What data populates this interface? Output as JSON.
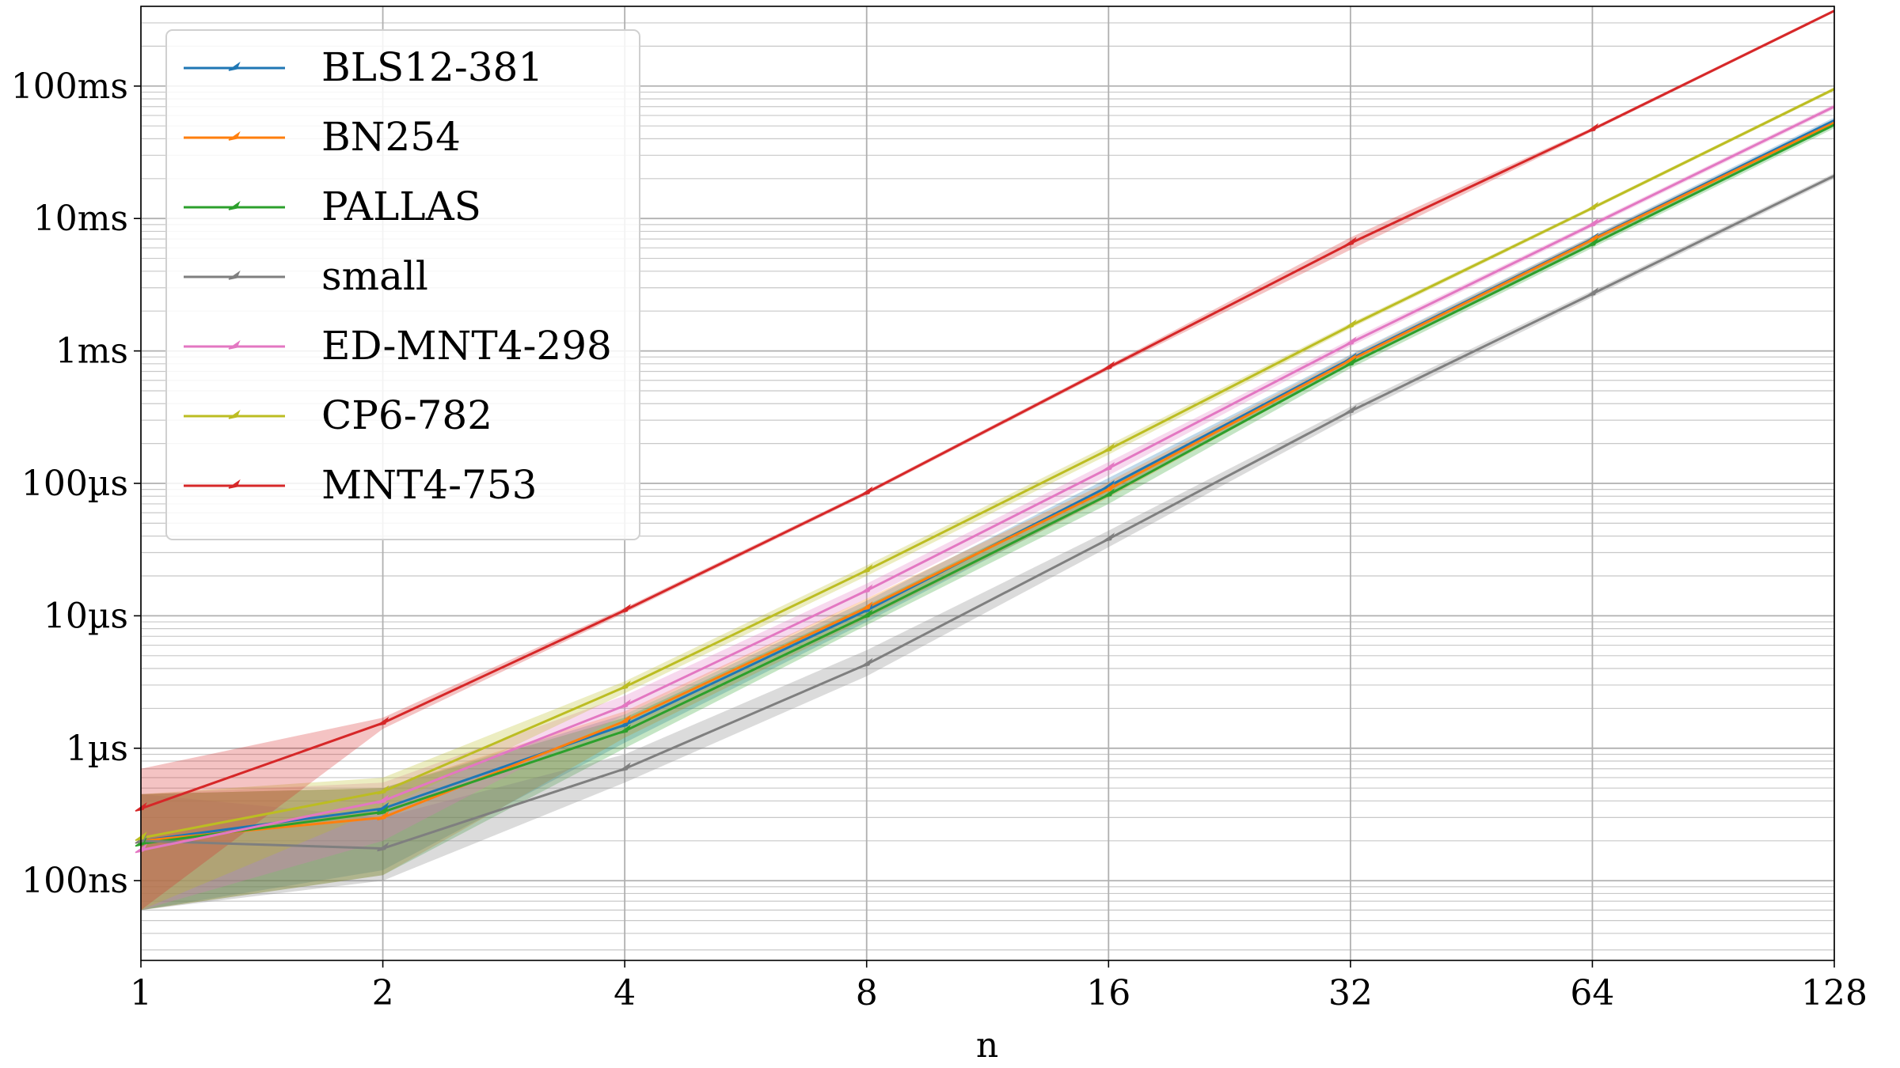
{
  "chart_data": {
    "type": "line",
    "title": "",
    "xlabel": "n",
    "ylabel": "",
    "x_scale": "log2",
    "y_scale": "log10",
    "xlim": [
      1,
      128
    ],
    "ylim_seconds": [
      2.5e-08,
      0.4
    ],
    "grid": true,
    "legend_position": "top-left",
    "x_ticks": [
      {
        "value": 1,
        "label": "1"
      },
      {
        "value": 2,
        "label": "2"
      },
      {
        "value": 4,
        "label": "4"
      },
      {
        "value": 8,
        "label": "8"
      },
      {
        "value": 16,
        "label": "16"
      },
      {
        "value": 32,
        "label": "32"
      },
      {
        "value": 64,
        "label": "64"
      },
      {
        "value": 128,
        "label": "128"
      }
    ],
    "y_ticks": [
      {
        "value": 1e-07,
        "label": "100ns"
      },
      {
        "value": 1e-06,
        "label": "1µs"
      },
      {
        "value": 1e-05,
        "label": "10µs"
      },
      {
        "value": 0.0001,
        "label": "100µs"
      },
      {
        "value": 0.001,
        "label": "1ms"
      },
      {
        "value": 0.01,
        "label": "10ms"
      },
      {
        "value": 0.1,
        "label": "100ms"
      }
    ],
    "y_unit": "seconds",
    "x": [
      1,
      2,
      4,
      8,
      16,
      32,
      64,
      128
    ],
    "series": [
      {
        "name": "BLS12-381",
        "color": "#1f77b4",
        "values": [
          2e-07,
          3.5e-07,
          1.5e-06,
          1.1e-05,
          9.5e-05,
          0.00087,
          0.007,
          0.055
        ],
        "band_low": [
          6e-08,
          1.2e-07,
          1.1e-06,
          9e-06,
          8e-05,
          0.0008,
          0.0066,
          0.052
        ],
        "band_high": [
          4.5e-07,
          5e-07,
          1.8e-06,
          1.3e-05,
          0.00011,
          0.00094,
          0.0074,
          0.058
        ]
      },
      {
        "name": "BN254",
        "color": "#ff7f0e",
        "values": [
          2e-07,
          3e-07,
          1.6e-06,
          1.15e-05,
          9e-05,
          0.00085,
          0.0069,
          0.053
        ],
        "band_low": [
          6e-08,
          1.1e-07,
          1.2e-06,
          9.5e-06,
          7.8e-05,
          0.00079,
          0.0065,
          0.05
        ],
        "band_high": [
          4.5e-07,
          5e-07,
          1.9e-06,
          1.35e-05,
          0.000103,
          0.00092,
          0.0073,
          0.056
        ]
      },
      {
        "name": "PALLAS",
        "color": "#2ca02c",
        "values": [
          1.9e-07,
          3.3e-07,
          1.35e-06,
          1e-05,
          8.2e-05,
          0.0008,
          0.0064,
          0.051
        ],
        "band_low": [
          6e-08,
          1.1e-07,
          1e-06,
          8.5e-06,
          7e-05,
          0.00074,
          0.006,
          0.048
        ],
        "band_high": [
          4.5e-07,
          5e-07,
          1.7e-06,
          1.2e-05,
          9.5e-05,
          0.00087,
          0.0068,
          0.054
        ]
      },
      {
        "name": "small",
        "color": "#7f7f7f",
        "values": [
          2e-07,
          1.75e-07,
          7e-07,
          4.3e-06,
          3.8e-05,
          0.00035,
          0.0027,
          0.021
        ],
        "band_low": [
          6e-08,
          1e-07,
          5.5e-07,
          3.5e-06,
          3.3e-05,
          0.00032,
          0.00255,
          0.02
        ],
        "band_high": [
          4.5e-07,
          3e-07,
          9e-07,
          5.5e-06,
          4.4e-05,
          0.00038,
          0.00285,
          0.022
        ]
      },
      {
        "name": "ED-MNT4-298",
        "color": "#e377c2",
        "values": [
          1.7e-07,
          4e-07,
          2.1e-06,
          1.55e-05,
          0.00013,
          0.00115,
          0.009,
          0.07
        ],
        "band_low": [
          6e-08,
          2e-07,
          1.8e-06,
          1.35e-05,
          0.000115,
          0.00108,
          0.0086,
          0.067
        ],
        "band_high": [
          4.5e-07,
          5.5e-07,
          2.5e-06,
          1.75e-05,
          0.000145,
          0.00122,
          0.0094,
          0.073
        ]
      },
      {
        "name": "CP6-782",
        "color": "#bcbd22",
        "values": [
          2.1e-07,
          4.7e-07,
          2.9e-06,
          2.2e-05,
          0.00018,
          0.00155,
          0.012,
          0.095
        ],
        "band_low": [
          6e-08,
          3.5e-07,
          2.6e-06,
          2e-05,
          0.000165,
          0.00148,
          0.0116,
          0.092
        ],
        "band_high": [
          4.5e-07,
          6e-07,
          3.2e-06,
          2.4e-05,
          0.000195,
          0.00162,
          0.0124,
          0.098
        ]
      },
      {
        "name": "MNT4-753",
        "color": "#d62728",
        "values": [
          3.5e-07,
          1.55e-06,
          1.1e-05,
          8.5e-05,
          0.00075,
          0.0065,
          0.047,
          0.37
        ],
        "band_low": [
          6e-08,
          1.4e-06,
          1.05e-05,
          8.2e-05,
          0.00072,
          0.0058,
          0.0455,
          0.36
        ],
        "band_high": [
          7e-07,
          1.7e-06,
          1.15e-05,
          8.8e-05,
          0.00078,
          0.0072,
          0.0485,
          0.38
        ]
      }
    ]
  }
}
